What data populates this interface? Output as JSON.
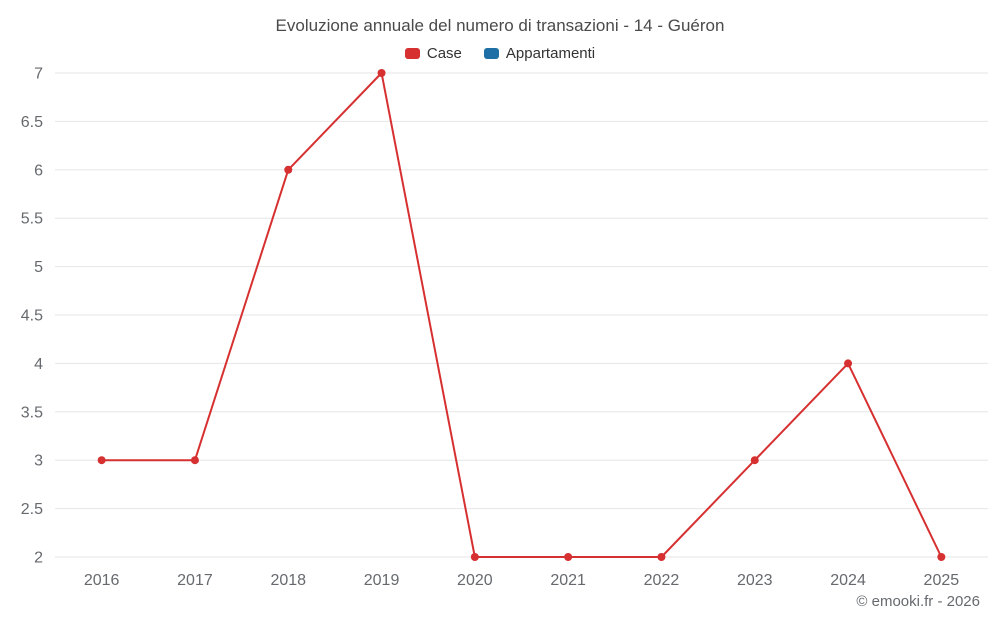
{
  "header": {
    "title": "Evoluzione annuale del numero di transazioni - 14 - Guéron",
    "legend": [
      {
        "label": "Case",
        "color": "#d63031"
      },
      {
        "label": "Appartamenti",
        "color": "#1d6fa5"
      }
    ]
  },
  "footer": {
    "copyright": "© emooki.fr - 2026"
  },
  "chart_data": {
    "type": "line",
    "title": "Evoluzione annuale del numero di transazioni - 14 - Guéron",
    "categories": [
      "2016",
      "2017",
      "2018",
      "2019",
      "2020",
      "2021",
      "2022",
      "2023",
      "2024",
      "2025"
    ],
    "series": [
      {
        "name": "Case",
        "color": "#d63031",
        "values": [
          3,
          3,
          6,
          7,
          2,
          2,
          2,
          3,
          4,
          2
        ]
      },
      {
        "name": "Appartamenti",
        "color": "#1d6fa5",
        "values": []
      }
    ],
    "xlabel": "",
    "ylabel": "",
    "ylim": [
      2,
      7
    ],
    "ytick_step": 0.5,
    "grid": true,
    "gridline_color": "#e6e6e6",
    "axis_label_color": "#66696e",
    "legend_position": "top",
    "marker_radius": 4,
    "line_width": 2
  }
}
